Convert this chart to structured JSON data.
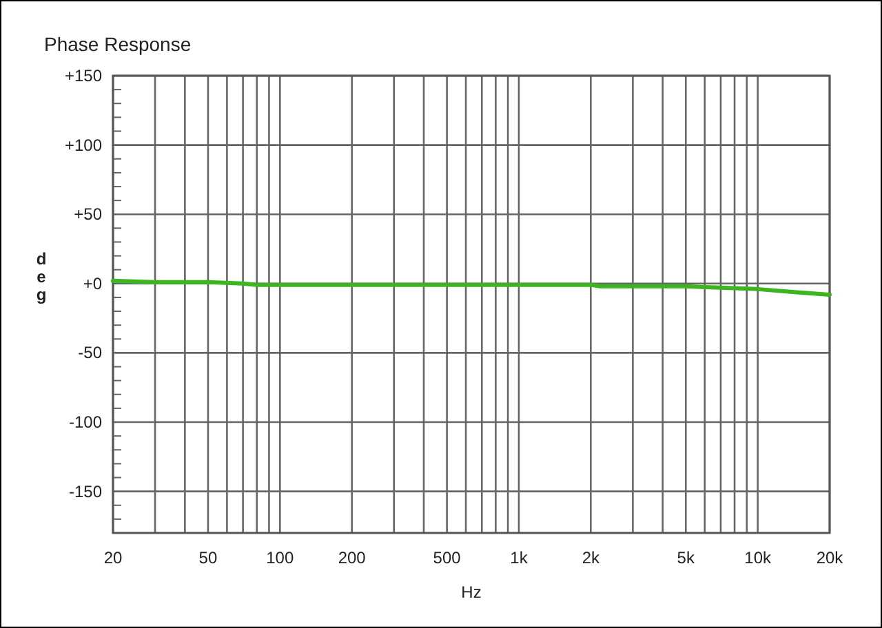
{
  "chart_data": {
    "type": "line",
    "title": "Phase Response",
    "xlabel": "Hz",
    "ylabel": "deg",
    "log": "x",
    "grid": true,
    "x": [
      20,
      30,
      50,
      70,
      80,
      100,
      200,
      500,
      1000,
      2000,
      2200,
      3000,
      5000,
      7000,
      10000,
      14000,
      20000
    ],
    "series": [
      {
        "color": "#3cb521",
        "values": [
          2,
          1,
          1,
          0,
          -1,
          -1,
          -1,
          -1,
          -1,
          -1,
          -2,
          -2,
          -2,
          -3,
          -4,
          -6,
          -8
        ]
      }
    ],
    "xlim": [
      20,
      20000
    ],
    "xticks": [
      20,
      {
        "value": 30,
        "label": null
      },
      {
        "value": 40,
        "label": null
      },
      50,
      {
        "value": 60,
        "label": null
      },
      {
        "value": 70,
        "label": null
      },
      {
        "value": 80,
        "label": null
      },
      {
        "value": 90,
        "label": null
      },
      100,
      200,
      {
        "value": 300,
        "label": null
      },
      {
        "value": 400,
        "label": null
      },
      500,
      {
        "value": 600,
        "label": null
      },
      {
        "value": 700,
        "label": null
      },
      {
        "value": 800,
        "label": null
      },
      {
        "value": 900,
        "label": null
      },
      {
        "value": 1000,
        "label": "1k"
      },
      {
        "value": 2000,
        "label": "2k"
      },
      {
        "value": 3000,
        "label": null
      },
      {
        "value": 4000,
        "label": null
      },
      {
        "value": 5000,
        "label": "5k"
      },
      {
        "value": 6000,
        "label": null
      },
      {
        "value": 7000,
        "label": null
      },
      {
        "value": 8000,
        "label": null
      },
      {
        "value": 9000,
        "label": null
      },
      {
        "value": 10000,
        "label": "10k"
      },
      {
        "value": 20000,
        "label": "20k"
      }
    ],
    "ylim": [
      -180,
      150
    ],
    "yticks": [
      {
        "value": -170,
        "label": null
      },
      {
        "value": -160,
        "label": null
      },
      {
        "value": -150,
        "label": "-150"
      },
      {
        "value": -140,
        "label": null
      },
      {
        "value": -130,
        "label": null
      },
      {
        "value": -120,
        "label": null
      },
      {
        "value": -110,
        "label": null
      },
      {
        "value": -100,
        "label": "-100"
      },
      {
        "value": -90,
        "label": null
      },
      {
        "value": -80,
        "label": null
      },
      {
        "value": -70,
        "label": null
      },
      {
        "value": -60,
        "label": null
      },
      {
        "value": -50,
        "label": "-50"
      },
      {
        "value": -40,
        "label": null
      },
      {
        "value": -30,
        "label": null
      },
      {
        "value": -20,
        "label": null
      },
      {
        "value": -10,
        "label": null
      },
      {
        "value": 0,
        "label": "+0"
      },
      {
        "value": 10,
        "label": null
      },
      {
        "value": 20,
        "label": null
      },
      {
        "value": 30,
        "label": null
      },
      {
        "value": 40,
        "label": null
      },
      {
        "value": 50,
        "label": "+50"
      },
      {
        "value": 60,
        "label": null
      },
      {
        "value": 70,
        "label": null
      },
      {
        "value": 80,
        "label": null
      },
      {
        "value": 90,
        "label": null
      },
      {
        "value": 100,
        "label": "+100"
      },
      {
        "value": 110,
        "label": null
      },
      {
        "value": 120,
        "label": null
      },
      {
        "value": 130,
        "label": null
      },
      {
        "value": 140,
        "label": null
      },
      {
        "value": 150,
        "label": "+150"
      }
    ]
  }
}
